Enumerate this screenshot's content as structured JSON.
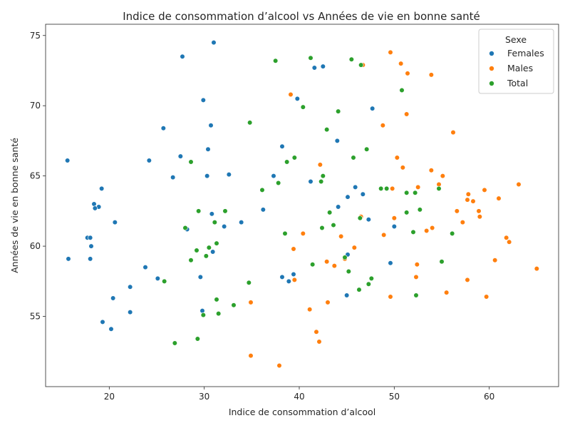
{
  "chart_data": {
    "type": "scatter",
    "title": "Indice de consommation d’alcool vs Années de vie en bonne santé",
    "xlabel": "Indice de consommation d’alcool",
    "ylabel": "Années de vie en bonne santé",
    "xlim": [
      13.3,
      67.3
    ],
    "ylim": [
      50.0,
      75.8
    ],
    "xticks": [
      20,
      30,
      40,
      50,
      60
    ],
    "yticks": [
      55,
      60,
      65,
      70,
      75
    ],
    "grid": false,
    "legend": {
      "title": "Sexe",
      "placement": "top-right"
    },
    "series": [
      {
        "name": "Females",
        "color": "#1f77b4",
        "points": [
          [
            15.6,
            66.1
          ],
          [
            15.7,
            59.1
          ],
          [
            17.7,
            60.6
          ],
          [
            18.0,
            60.6
          ],
          [
            18.1,
            60.0
          ],
          [
            18.0,
            59.1
          ],
          [
            18.4,
            63.0
          ],
          [
            18.9,
            62.8
          ],
          [
            18.5,
            62.7
          ],
          [
            19.2,
            64.1
          ],
          [
            19.3,
            54.6
          ],
          [
            20.2,
            54.1
          ],
          [
            20.4,
            56.3
          ],
          [
            20.6,
            61.7
          ],
          [
            22.2,
            57.1
          ],
          [
            22.2,
            55.3
          ],
          [
            23.8,
            58.5
          ],
          [
            24.2,
            66.1
          ],
          [
            25.1,
            57.7
          ],
          [
            25.7,
            68.4
          ],
          [
            26.7,
            64.9
          ],
          [
            27.5,
            66.4
          ],
          [
            27.7,
            73.5
          ],
          [
            28.2,
            61.2
          ],
          [
            29.6,
            57.8
          ],
          [
            29.8,
            55.4
          ],
          [
            29.9,
            70.4
          ],
          [
            30.3,
            65.0
          ],
          [
            30.4,
            66.9
          ],
          [
            30.7,
            68.6
          ],
          [
            30.8,
            62.3
          ],
          [
            30.9,
            59.6
          ],
          [
            31.0,
            74.5
          ],
          [
            32.1,
            61.4
          ],
          [
            32.6,
            65.1
          ],
          [
            33.9,
            61.7
          ],
          [
            36.2,
            62.6
          ],
          [
            37.3,
            65.0
          ],
          [
            38.2,
            67.1
          ],
          [
            38.2,
            57.8
          ],
          [
            38.9,
            57.5
          ],
          [
            39.4,
            58.0
          ],
          [
            39.8,
            70.5
          ],
          [
            41.2,
            64.6
          ],
          [
            41.6,
            72.7
          ],
          [
            42.5,
            72.8
          ],
          [
            44.0,
            67.5
          ],
          [
            44.1,
            62.8
          ],
          [
            45.0,
            56.5
          ],
          [
            45.1,
            63.5
          ],
          [
            45.1,
            59.4
          ],
          [
            45.9,
            64.2
          ],
          [
            46.7,
            63.7
          ],
          [
            47.3,
            61.9
          ],
          [
            47.7,
            69.8
          ],
          [
            49.6,
            58.8
          ],
          [
            50.0,
            61.4
          ]
        ]
      },
      {
        "name": "Males",
        "color": "#ff7f0e",
        "points": [
          [
            34.9,
            52.2
          ],
          [
            34.9,
            56.0
          ],
          [
            37.9,
            51.5
          ],
          [
            39.1,
            70.8
          ],
          [
            39.4,
            59.8
          ],
          [
            39.5,
            57.6
          ],
          [
            40.4,
            60.9
          ],
          [
            41.1,
            55.5
          ],
          [
            41.8,
            53.9
          ],
          [
            42.2,
            65.8
          ],
          [
            42.1,
            53.2
          ],
          [
            42.9,
            58.9
          ],
          [
            43.0,
            56.0
          ],
          [
            43.7,
            58.6
          ],
          [
            44.4,
            60.7
          ],
          [
            44.8,
            59.1
          ],
          [
            45.8,
            59.9
          ],
          [
            46.5,
            62.1
          ],
          [
            46.7,
            72.9
          ],
          [
            48.8,
            68.6
          ],
          [
            48.9,
            60.8
          ],
          [
            49.6,
            73.8
          ],
          [
            49.6,
            56.4
          ],
          [
            49.8,
            64.1
          ],
          [
            50.0,
            62.0
          ],
          [
            50.3,
            66.3
          ],
          [
            50.7,
            73.0
          ],
          [
            50.9,
            65.6
          ],
          [
            51.3,
            69.4
          ],
          [
            51.4,
            72.3
          ],
          [
            52.3,
            57.8
          ],
          [
            52.4,
            58.7
          ],
          [
            52.5,
            64.2
          ],
          [
            53.4,
            61.1
          ],
          [
            53.9,
            72.2
          ],
          [
            53.9,
            65.4
          ],
          [
            54.0,
            61.3
          ],
          [
            54.7,
            64.4
          ],
          [
            55.1,
            65.0
          ],
          [
            55.5,
            56.7
          ],
          [
            56.2,
            68.1
          ],
          [
            56.6,
            62.5
          ],
          [
            57.2,
            61.7
          ],
          [
            57.7,
            63.3
          ],
          [
            57.7,
            57.6
          ],
          [
            57.8,
            63.7
          ],
          [
            58.3,
            63.2
          ],
          [
            58.9,
            62.5
          ],
          [
            59.0,
            62.1
          ],
          [
            59.5,
            64.0
          ],
          [
            59.7,
            56.4
          ],
          [
            60.6,
            59.0
          ],
          [
            61.0,
            63.4
          ],
          [
            61.8,
            60.6
          ],
          [
            62.1,
            60.3
          ],
          [
            63.1,
            64.4
          ],
          [
            65.0,
            58.4
          ]
        ]
      },
      {
        "name": "Total",
        "color": "#2ca02c",
        "points": [
          [
            25.8,
            57.5
          ],
          [
            26.9,
            53.1
          ],
          [
            28.0,
            61.3
          ],
          [
            28.6,
            66.0
          ],
          [
            28.6,
            59.0
          ],
          [
            29.2,
            59.7
          ],
          [
            29.3,
            53.4
          ],
          [
            29.4,
            62.5
          ],
          [
            29.9,
            55.1
          ],
          [
            30.2,
            59.3
          ],
          [
            30.5,
            59.9
          ],
          [
            31.1,
            61.7
          ],
          [
            31.3,
            60.2
          ],
          [
            31.3,
            56.2
          ],
          [
            31.5,
            55.2
          ],
          [
            32.2,
            62.5
          ],
          [
            33.1,
            55.8
          ],
          [
            34.7,
            57.4
          ],
          [
            34.8,
            68.8
          ],
          [
            36.1,
            64.0
          ],
          [
            37.5,
            73.2
          ],
          [
            37.8,
            64.5
          ],
          [
            38.5,
            60.9
          ],
          [
            38.7,
            66.0
          ],
          [
            39.5,
            66.3
          ],
          [
            40.4,
            69.9
          ],
          [
            41.2,
            73.4
          ],
          [
            41.4,
            58.7
          ],
          [
            42.3,
            64.6
          ],
          [
            42.4,
            61.3
          ],
          [
            42.5,
            65.0
          ],
          [
            42.9,
            68.3
          ],
          [
            43.2,
            62.4
          ],
          [
            43.6,
            61.5
          ],
          [
            44.1,
            69.6
          ],
          [
            44.8,
            59.2
          ],
          [
            45.2,
            58.2
          ],
          [
            45.5,
            73.3
          ],
          [
            45.7,
            66.3
          ],
          [
            46.3,
            56.9
          ],
          [
            46.4,
            62.0
          ],
          [
            46.5,
            72.9
          ],
          [
            47.1,
            66.9
          ],
          [
            47.3,
            57.3
          ],
          [
            47.6,
            57.7
          ],
          [
            48.6,
            64.1
          ],
          [
            49.2,
            64.1
          ],
          [
            50.8,
            71.1
          ],
          [
            51.3,
            63.8
          ],
          [
            51.3,
            62.4
          ],
          [
            52.0,
            61.0
          ],
          [
            52.2,
            63.8
          ],
          [
            52.3,
            56.5
          ],
          [
            52.7,
            62.6
          ],
          [
            54.7,
            64.1
          ],
          [
            55.0,
            58.9
          ],
          [
            56.1,
            60.9
          ]
        ]
      }
    ]
  }
}
